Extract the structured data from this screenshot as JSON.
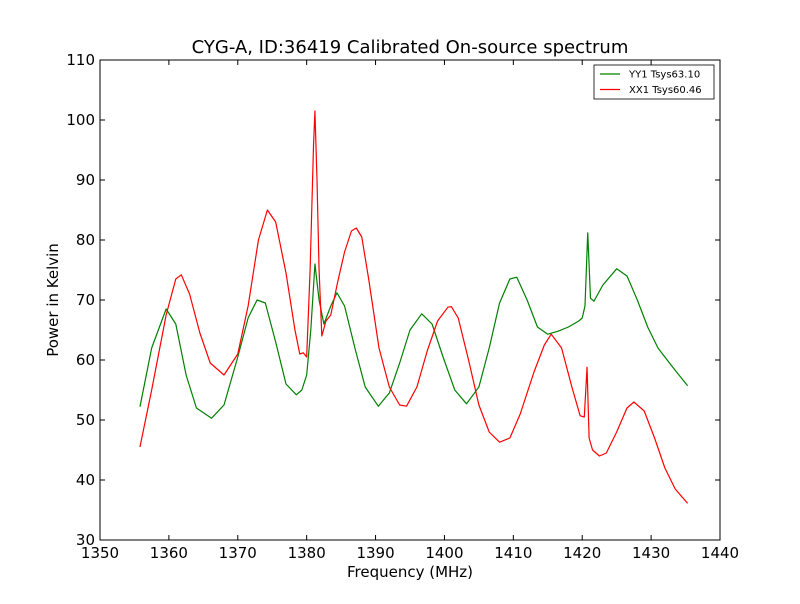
{
  "chart_data": {
    "type": "line",
    "title": "CYG-A, ID:36419 Calibrated On-source spectrum",
    "xlabel": "Frequency (MHz)",
    "ylabel": "Power in Kelvin",
    "xlim": [
      1350,
      1440
    ],
    "ylim": [
      30,
      110
    ],
    "xticks": [
      1350,
      1360,
      1370,
      1380,
      1390,
      1400,
      1410,
      1420,
      1430,
      1440
    ],
    "yticks": [
      30,
      40,
      50,
      60,
      70,
      80,
      90,
      100,
      110
    ],
    "grid": false,
    "legend_position": "top-right",
    "series": [
      {
        "name": "YY1 Tsys63.10",
        "color": "#008000",
        "x": [
          1355.8,
          1357.5,
          1359.6,
          1361.0,
          1362.5,
          1364.0,
          1366.2,
          1368.0,
          1370.0,
          1371.5,
          1372.8,
          1374.0,
          1375.5,
          1377.0,
          1378.5,
          1379.3,
          1380.0,
          1380.6,
          1381.2,
          1381.8,
          1382.5,
          1383.5,
          1384.4,
          1385.5,
          1387.0,
          1388.5,
          1390.4,
          1392.0,
          1393.5,
          1395.0,
          1396.7,
          1398.2,
          1399.8,
          1401.5,
          1403.2,
          1405.0,
          1406.5,
          1408.0,
          1409.5,
          1410.5,
          1412.0,
          1413.5,
          1415.0,
          1416.5,
          1418.0,
          1419.5,
          1420.0,
          1420.4,
          1420.8,
          1421.2,
          1421.7,
          1423.0,
          1425.0,
          1426.5,
          1428.0,
          1429.5,
          1431.0,
          1433.0,
          1435.3
        ],
        "values": [
          52.2,
          62.0,
          68.5,
          66.0,
          57.5,
          52.0,
          50.3,
          52.5,
          60.5,
          67.0,
          70.0,
          69.5,
          63.0,
          56.0,
          54.2,
          55.0,
          57.5,
          65.0,
          76.0,
          70.0,
          66.0,
          69.0,
          71.2,
          69.0,
          62.0,
          55.5,
          52.3,
          54.5,
          59.5,
          65.0,
          67.7,
          66.0,
          60.5,
          55.0,
          52.7,
          55.5,
          62.0,
          69.5,
          73.5,
          73.8,
          70.0,
          65.5,
          64.3,
          64.8,
          65.5,
          66.5,
          67.0,
          69.0,
          81.2,
          70.3,
          69.8,
          72.5,
          75.2,
          74.0,
          70.0,
          65.5,
          62.0,
          59.0,
          55.7
        ]
      },
      {
        "name": "XX1 Tsys60.46",
        "color": "#ff0000",
        "x": [
          1355.8,
          1357.5,
          1359.6,
          1361.0,
          1361.8,
          1363.0,
          1364.5,
          1366.0,
          1368.0,
          1370.0,
          1371.5,
          1373.0,
          1374.3,
          1375.5,
          1377.0,
          1378.3,
          1379.0,
          1379.5,
          1380.0,
          1380.5,
          1381.0,
          1381.2,
          1381.5,
          1381.8,
          1382.2,
          1382.8,
          1383.5,
          1384.5,
          1385.5,
          1386.5,
          1387.2,
          1388.0,
          1389.0,
          1390.5,
          1392.0,
          1393.5,
          1394.5,
          1396.0,
          1397.5,
          1399.0,
          1400.5,
          1401.0,
          1402.0,
          1403.5,
          1405.0,
          1406.5,
          1408.0,
          1409.5,
          1411.0,
          1413.0,
          1414.5,
          1415.5,
          1417.0,
          1418.5,
          1419.7,
          1420.3,
          1420.7,
          1421.0,
          1421.5,
          1422.5,
          1423.5,
          1425.0,
          1426.5,
          1427.5,
          1429.0,
          1430.5,
          1432.0,
          1433.5,
          1435.3
        ],
        "values": [
          45.5,
          55.0,
          67.5,
          73.5,
          74.2,
          71.0,
          64.5,
          59.5,
          57.5,
          61.0,
          69.0,
          80.0,
          85.0,
          83.0,
          74.5,
          65.0,
          61.0,
          61.2,
          60.5,
          75.0,
          96.0,
          101.5,
          90.0,
          75.0,
          64.0,
          66.5,
          67.5,
          73.0,
          78.0,
          81.5,
          82.0,
          80.5,
          73.5,
          62.0,
          55.5,
          52.5,
          52.3,
          55.5,
          61.5,
          66.5,
          68.8,
          68.9,
          67.0,
          60.0,
          52.5,
          48.0,
          46.3,
          47.0,
          51.0,
          58.0,
          62.5,
          64.3,
          62.0,
          55.5,
          50.7,
          50.5,
          58.8,
          47.0,
          45.0,
          44.0,
          44.5,
          48.0,
          52.0,
          53.0,
          51.5,
          47.0,
          42.0,
          38.5,
          36.1
        ]
      }
    ]
  }
}
